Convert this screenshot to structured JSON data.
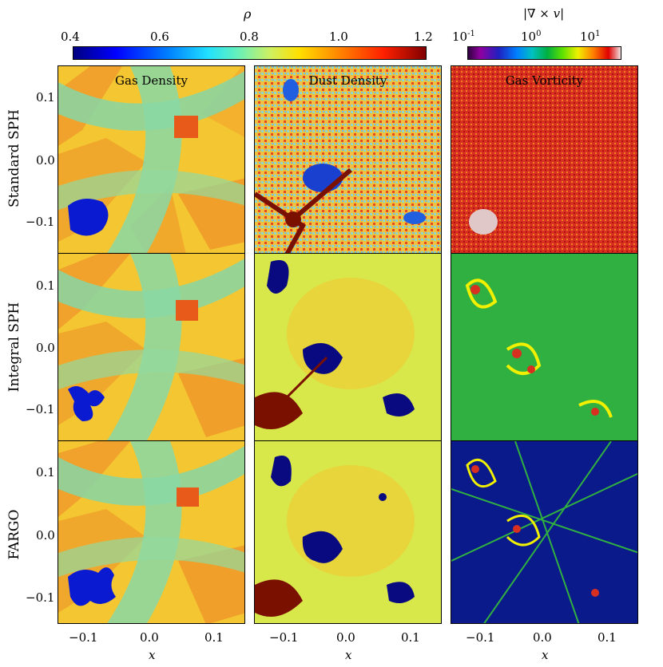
{
  "colorbars": {
    "density": {
      "symbol": "ρ",
      "ticks": [
        "0.4",
        "0.6",
        "0.8",
        "1.0",
        "1.2"
      ]
    },
    "vorticity": {
      "symbol": "|∇ × v|",
      "ticks": [
        {
          "base": "10",
          "exp": "-1"
        },
        {
          "base": "10",
          "exp": "0"
        },
        {
          "base": "10",
          "exp": "1"
        }
      ]
    }
  },
  "columns": [
    "Gas Density",
    "Dust Density",
    "Gas Vorticity"
  ],
  "rows": [
    "Standard SPH",
    "Integral SPH",
    "FARGO"
  ],
  "axes": {
    "x_label": "x",
    "x_ticks": [
      "−0.1",
      "0.0",
      "0.1"
    ],
    "y_ticks": [
      "0.1",
      "0.0",
      "−0.1"
    ]
  },
  "colors": {
    "gas_bg": "#f2c230",
    "gas_cross": "#7fd6a8",
    "gas_orange": "#f09a2a",
    "dust_bg": "#d8e84a",
    "dust_blob": "#0a0a80",
    "vort_red": "#d83020",
    "vort_green": "#30b040",
    "vort_blue": "#0a1a8a"
  }
}
